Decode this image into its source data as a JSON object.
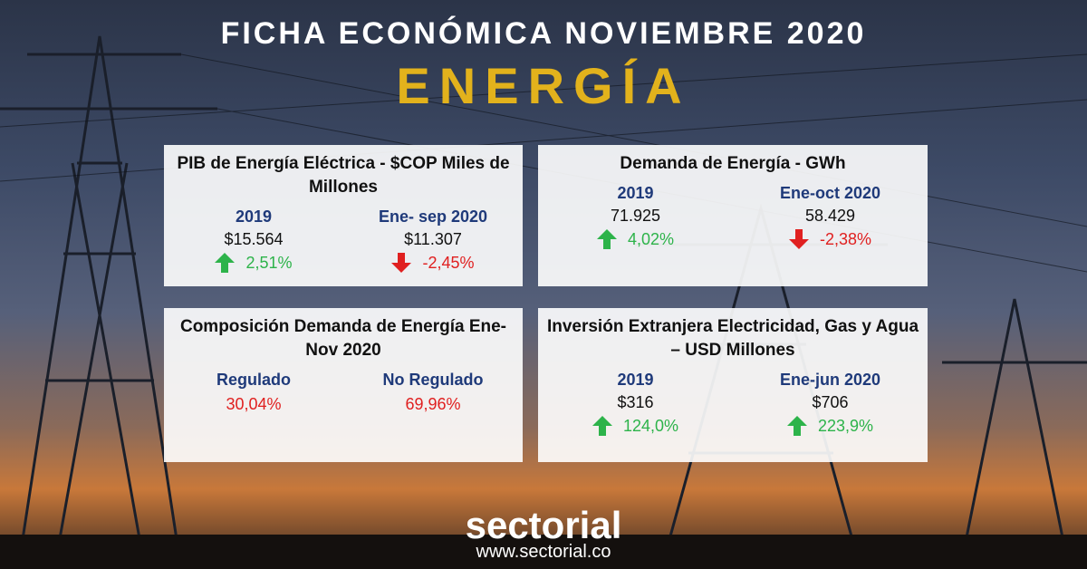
{
  "header": {
    "title": "FICHA ECONÓMICA NOVIEMBRE 2020",
    "subtitle": "ENERGÍA"
  },
  "cards": [
    {
      "title": "PIB de Energía Eléctrica - $COP Miles de Millones",
      "items": [
        {
          "label": "2019",
          "value": "$15.564",
          "change": "2,51%",
          "arrow": "up",
          "color": "#2db34a"
        },
        {
          "label": "Ene- sep 2020",
          "value": "$11.307",
          "change": "-2,45%",
          "arrow": "down",
          "color": "#e02020"
        }
      ]
    },
    {
      "title": "Demanda de Energía - GWh",
      "items": [
        {
          "label": "2019",
          "value": "71.925",
          "change": "4,02%",
          "arrow": "up",
          "color": "#2db34a"
        },
        {
          "label": "Ene-oct 2020",
          "value": "58.429",
          "change": "-2,38%",
          "arrow": "down",
          "color": "#e02020"
        }
      ]
    },
    {
      "title": "Composición Demanda de Energía Ene-Nov 2020",
      "items": [
        {
          "label": "Regulado",
          "change": "30,04%",
          "color": "#e02020"
        },
        {
          "label": "No Regulado",
          "change": "69,96%",
          "color": "#e02020"
        }
      ]
    },
    {
      "title": "Inversión Extranjera Electricidad, Gas y Agua – USD Millones",
      "items": [
        {
          "label": "2019",
          "value": "$316",
          "change": "124,0%",
          "arrow": "up",
          "color": "#2db34a"
        },
        {
          "label": "Ene-jun 2020",
          "value": "$706",
          "change": "223,9%",
          "arrow": "up",
          "color": "#2db34a"
        }
      ]
    }
  ],
  "footer": {
    "brand": "sectorial",
    "url": "www.sectorial.co"
  }
}
